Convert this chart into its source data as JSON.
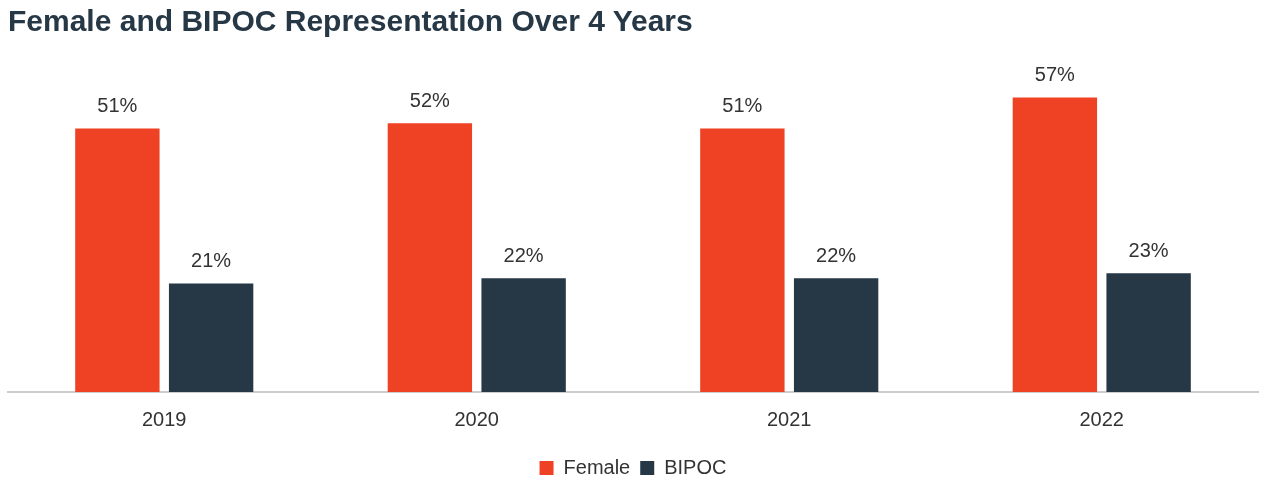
{
  "chart_data": {
    "type": "bar",
    "title": "Female and BIPOC Representation Over 4 Years",
    "categories": [
      "2019",
      "2020",
      "2021",
      "2022"
    ],
    "series": [
      {
        "name": "Female",
        "color": "#ef4123",
        "values": [
          51,
          52,
          51,
          57
        ],
        "value_labels": [
          "51%",
          "52%",
          "51%",
          "57%"
        ]
      },
      {
        "name": "BIPOC",
        "color": "#263746",
        "values": [
          21,
          22,
          22,
          23
        ],
        "value_labels": [
          "21%",
          "22%",
          "22%",
          "23%"
        ]
      }
    ],
    "legend": "bottom"
  }
}
